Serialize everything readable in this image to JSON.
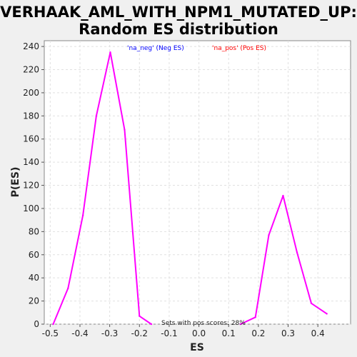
{
  "title_line1": "VERHAAK_AML_WITH_NPM1_MUTATED_UP:",
  "title_line2": "Random ES distribution",
  "chart_data": {
    "type": "line",
    "xlabel": "ES",
    "ylabel": "P(ES)",
    "xlim": [
      -0.52,
      0.51
    ],
    "ylim": [
      0,
      245
    ],
    "xticks": [
      -0.5,
      -0.4,
      -0.3,
      -0.2,
      -0.1,
      0.0,
      0.1,
      0.2,
      0.3,
      0.4
    ],
    "xtick_labels": [
      "-0.5",
      "-0.4",
      "-0.3",
      "-0.2",
      "-0.1",
      "0.0",
      "0.1",
      "0.2",
      "0.3",
      "0.4"
    ],
    "yticks": [
      0,
      20,
      40,
      60,
      80,
      100,
      120,
      140,
      160,
      180,
      200,
      220,
      240
    ],
    "grid": true,
    "legend": [
      {
        "label": "'na_neg' (Neg ES)",
        "color": "#0000ff"
      },
      {
        "label": "'na_pos' (Pos ES)",
        "color": "#ff0000"
      }
    ],
    "annotation": "Sets with pos scores: 28%",
    "series": [
      {
        "color": "#ff00ff",
        "points": [
          [
            -0.49,
            0
          ],
          [
            -0.44,
            31
          ],
          [
            -0.39,
            94
          ],
          [
            -0.345,
            180
          ],
          [
            -0.298,
            235
          ],
          [
            -0.25,
            168
          ],
          [
            -0.2,
            7
          ],
          [
            -0.16,
            0
          ]
        ]
      },
      {
        "color": "#ff00ff",
        "points": [
          [
            0.14,
            0
          ],
          [
            0.19,
            6
          ],
          [
            0.235,
            77
          ],
          [
            0.283,
            111
          ],
          [
            0.33,
            62
          ],
          [
            0.378,
            18
          ],
          [
            0.43,
            9
          ]
        ]
      }
    ]
  }
}
